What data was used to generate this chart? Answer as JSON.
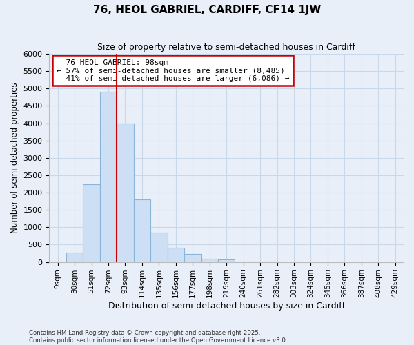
{
  "title": "76, HEOL GABRIEL, CARDIFF, CF14 1JW",
  "subtitle": "Size of property relative to semi-detached houses in Cardiff",
  "xlabel": "Distribution of semi-detached houses by size in Cardiff",
  "ylabel": "Number of semi-detached properties",
  "categories": [
    "9sqm",
    "30sqm",
    "51sqm",
    "72sqm",
    "93sqm",
    "114sqm",
    "135sqm",
    "156sqm",
    "177sqm",
    "198sqm",
    "219sqm",
    "240sqm",
    "261sqm",
    "282sqm",
    "303sqm",
    "324sqm",
    "345sqm",
    "366sqm",
    "387sqm",
    "408sqm",
    "429sqm"
  ],
  "values": [
    5,
    270,
    2250,
    4900,
    4000,
    1800,
    850,
    400,
    230,
    100,
    80,
    10,
    5,
    2,
    1,
    1,
    0,
    0,
    0,
    0,
    0
  ],
  "bar_color": "#ccdff5",
  "bar_edge_color": "#8ab4d8",
  "grid_color": "#c8d8e8",
  "background_color": "#e8eff8",
  "property_bin_index": 4,
  "property_label": "76 HEOL GABRIEL: 98sqm",
  "smaller_pct": "57%",
  "smaller_count": "8,485",
  "larger_pct": "41%",
  "larger_count": "6,086",
  "annotation_box_color": "#ffffff",
  "annotation_border_color": "#cc0000",
  "red_line_color": "#cc0000",
  "ylim": [
    0,
    6000
  ],
  "yticks": [
    0,
    500,
    1000,
    1500,
    2000,
    2500,
    3000,
    3500,
    4000,
    4500,
    5000,
    5500,
    6000
  ],
  "footer_line1": "Contains HM Land Registry data © Crown copyright and database right 2025.",
  "footer_line2": "Contains public sector information licensed under the Open Government Licence v3.0."
}
